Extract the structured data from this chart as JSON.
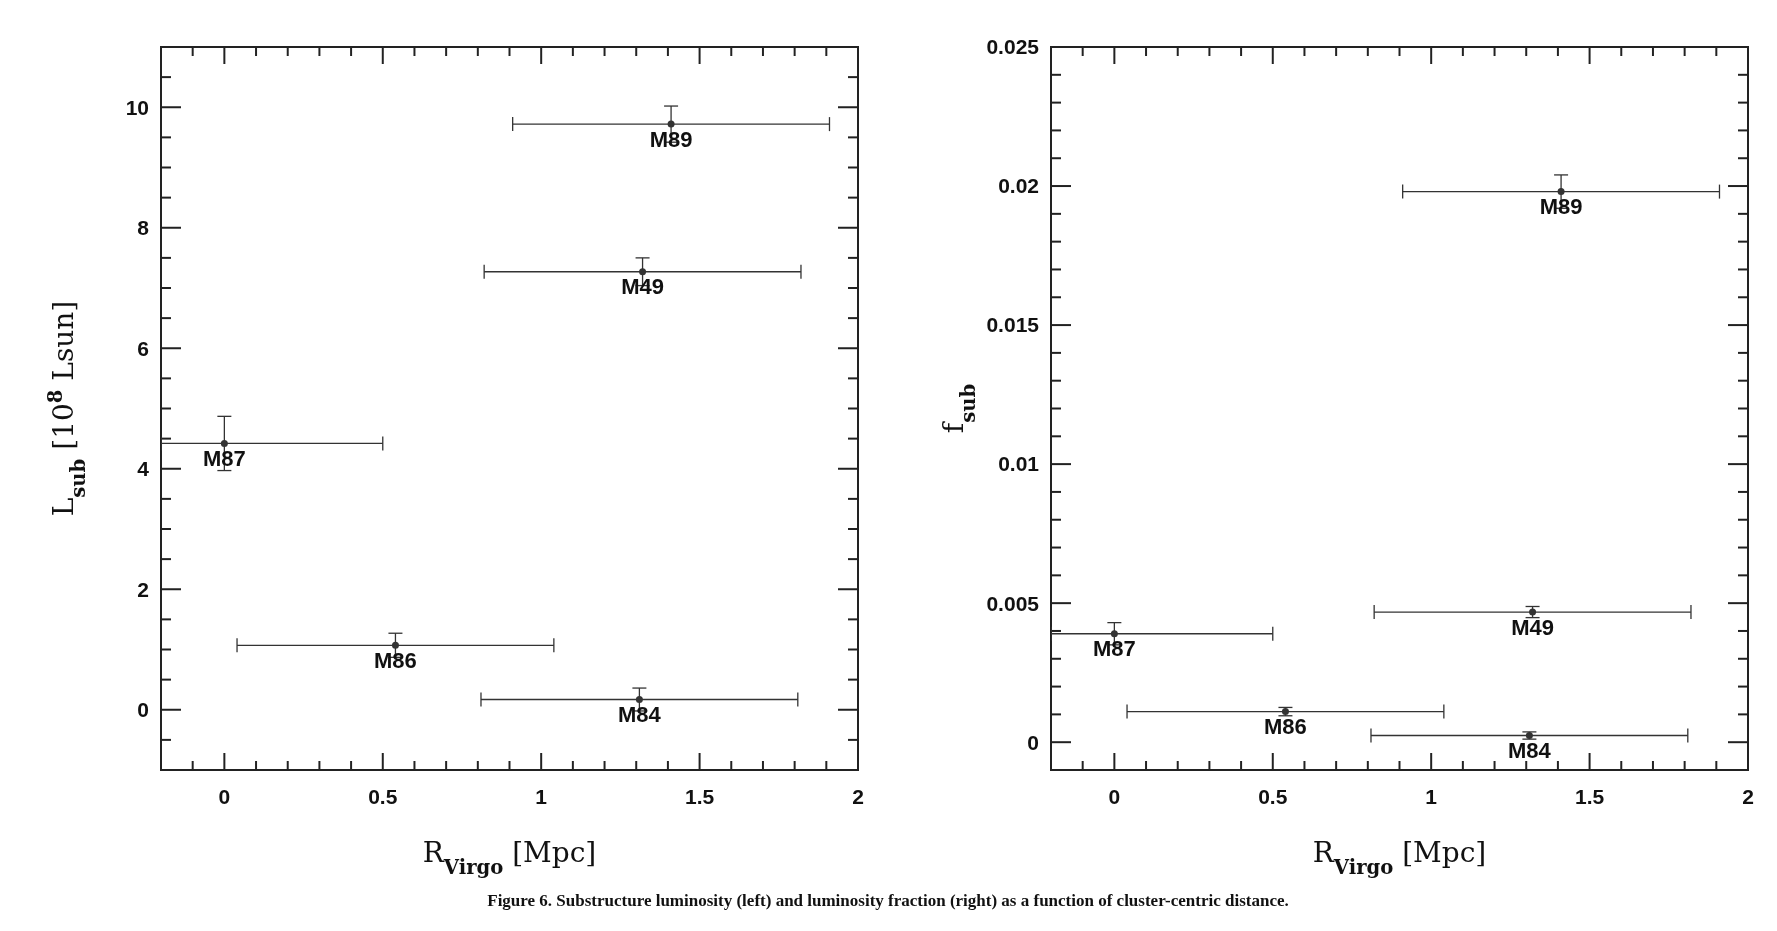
{
  "chart_data": [
    {
      "type": "scatter",
      "xlabel": "R$_{Virgo}$ [Mpc]",
      "ylabel": "L$_{sub}$ [10$^{8}$ Lsun]",
      "xlim": [
        -0.2,
        2
      ],
      "ylim": [
        -1,
        11
      ],
      "marker": "circle",
      "xticks": [
        {
          "value": -0.2,
          "label": null
        },
        {
          "value": -0.1,
          "label": null
        },
        0,
        {
          "value": 0.1,
          "label": null
        },
        {
          "value": 0.2,
          "label": null
        },
        {
          "value": 0.3,
          "label": null
        },
        {
          "value": 0.4,
          "label": null
        },
        0.5,
        {
          "value": 0.6,
          "label": null
        },
        {
          "value": 0.7,
          "label": null
        },
        {
          "value": 0.8,
          "label": null
        },
        {
          "value": 0.9,
          "label": null
        },
        1,
        {
          "value": 1.1,
          "label": null
        },
        {
          "value": 1.2,
          "label": null
        },
        {
          "value": 1.3,
          "label": null
        },
        {
          "value": 1.4,
          "label": null
        },
        1.5,
        {
          "value": 1.6,
          "label": null
        },
        {
          "value": 1.7,
          "label": null
        },
        {
          "value": 1.8,
          "label": null
        },
        {
          "value": 1.9,
          "label": null
        },
        2
      ],
      "yticks": [
        {
          "value": -0.5,
          "label": null
        },
        0,
        {
          "value": 0.5,
          "label": null
        },
        {
          "value": 1,
          "label": null
        },
        {
          "value": 1.5,
          "label": null
        },
        2,
        {
          "value": 2.5,
          "label": null
        },
        {
          "value": 3,
          "label": null
        },
        {
          "value": 3.5,
          "label": null
        },
        4,
        {
          "value": 4.5,
          "label": null
        },
        {
          "value": 5,
          "label": null
        },
        {
          "value": 5.5,
          "label": null
        },
        6,
        {
          "value": 6.5,
          "label": null
        },
        {
          "value": 7,
          "label": null
        },
        {
          "value": 7.5,
          "label": null
        },
        8,
        {
          "value": 8.5,
          "label": null
        },
        {
          "value": 9,
          "label": null
        },
        {
          "value": 9.5,
          "label": null
        },
        10,
        {
          "value": 10.5,
          "label": null
        }
      ],
      "series": [
        {
          "color": "#333333",
          "x": [
            1.41,
            1.32,
            0,
            0.54,
            1.31
          ],
          "values": [
            9.72,
            7.27,
            4.42,
            1.07,
            0.17
          ],
          "errors": [
            0.3,
            0.23,
            0.45,
            0.2,
            0.19
          ],
          "xerrors": [
            0.5,
            0.5,
            [
              -0.2,
              0.5
            ],
            0.5,
            0.5
          ]
        }
      ],
      "annotations": [
        {
          "text": "M89",
          "x": 1.41,
          "y": 9.72
        },
        {
          "text": "M49",
          "x": 1.32,
          "y": 7.27
        },
        {
          "text": "M87",
          "x": 0,
          "y": 4.42
        },
        {
          "text": "M86",
          "x": 0.54,
          "y": 1.07
        },
        {
          "text": "M84",
          "x": 1.31,
          "y": 0.17
        },
        "Figure 6. Substructure luminosity (left) and luminosity fraction (right) as a function of cluster-centric distance."
      ]
    },
    {
      "type": "scatter",
      "xlabel": "R$_{Virgo}$ [Mpc]",
      "ylabel": "f$_{sub}$",
      "xlim": [
        -0.2,
        2
      ],
      "ylim": [
        -0.001,
        0.025
      ],
      "marker": "circle",
      "xticks": [
        {
          "value": -0.2,
          "label": null
        },
        {
          "value": -0.1,
          "label": null
        },
        0,
        {
          "value": 0.1,
          "label": null
        },
        {
          "value": 0.2,
          "label": null
        },
        {
          "value": 0.3,
          "label": null
        },
        {
          "value": 0.4,
          "label": null
        },
        0.5,
        {
          "value": 0.6,
          "label": null
        },
        {
          "value": 0.7,
          "label": null
        },
        {
          "value": 0.8,
          "label": null
        },
        {
          "value": 0.9,
          "label": null
        },
        1,
        {
          "value": 1.1,
          "label": null
        },
        {
          "value": 1.2,
          "label": null
        },
        {
          "value": 1.3,
          "label": null
        },
        {
          "value": 1.4,
          "label": null
        },
        1.5,
        {
          "value": 1.6,
          "label": null
        },
        {
          "value": 1.7,
          "label": null
        },
        {
          "value": 1.8,
          "label": null
        },
        {
          "value": 1.9,
          "label": null
        },
        2
      ],
      "yticks": [
        0,
        {
          "value": 0.001,
          "label": null
        },
        {
          "value": 0.002,
          "label": null
        },
        {
          "value": 0.003,
          "label": null
        },
        {
          "value": 0.004,
          "label": null
        },
        0.005,
        {
          "value": 0.006,
          "label": null
        },
        {
          "value": 0.007,
          "label": null
        },
        {
          "value": 0.008,
          "label": null
        },
        {
          "value": 0.009,
          "label": null
        },
        0.01,
        {
          "value": 0.011,
          "label": null
        },
        {
          "value": 0.012,
          "label": null
        },
        {
          "value": 0.013,
          "label": null
        },
        {
          "value": 0.014,
          "label": null
        },
        0.015,
        {
          "value": 0.016,
          "label": null
        },
        {
          "value": 0.017,
          "label": null
        },
        {
          "value": 0.018,
          "label": null
        },
        {
          "value": 0.019,
          "label": null
        },
        0.02,
        {
          "value": 0.021,
          "label": null
        },
        {
          "value": 0.022,
          "label": null
        },
        {
          "value": 0.023,
          "label": null
        },
        {
          "value": 0.024,
          "label": null
        },
        0.025
      ],
      "series": [
        {
          "color": "#333333",
          "x": [
            1.41,
            1.32,
            0,
            0.54,
            1.31
          ],
          "values": [
            0.0198,
            0.00468,
            0.0039,
            0.0011,
            0.00024
          ],
          "errors": [
            0.0006,
            0.0002,
            0.0004,
            0.00015,
            0.00013
          ],
          "xerrors": [
            0.5,
            0.5,
            [
              -0.2,
              0.5
            ],
            0.5,
            0.5
          ]
        }
      ],
      "annotations": [
        {
          "text": "M89",
          "x": 1.41,
          "y": 0.0198
        },
        {
          "text": "M49",
          "x": 1.32,
          "y": 0.00468
        },
        {
          "text": "M87",
          "x": 0,
          "y": 0.0039
        },
        {
          "text": "M86",
          "x": 0.54,
          "y": 0.0011
        },
        {
          "text": "M84",
          "x": 1.31,
          "y": 0.00024
        }
      ]
    }
  ]
}
